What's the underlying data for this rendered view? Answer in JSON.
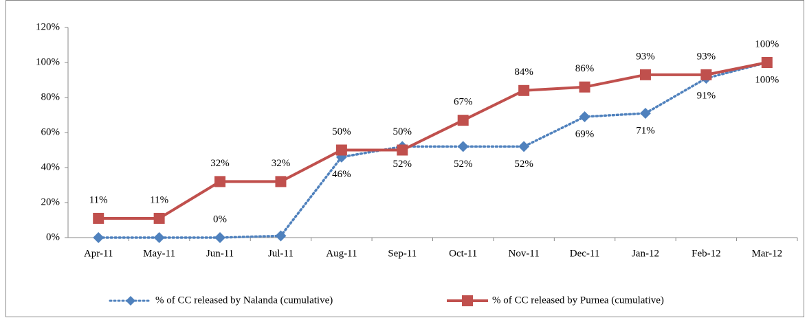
{
  "chart_data": {
    "type": "line",
    "categories": [
      "Apr-11",
      "May-11",
      "Jun-11",
      "Jul-11",
      "Aug-11",
      "Sep-11",
      "Oct-11",
      "Nov-11",
      "Dec-11",
      "Jan-12",
      "Feb-12",
      "Mar-12"
    ],
    "series": [
      {
        "name": "% of CC released by Nalanda (cumulative)",
        "color": "#4f81bd",
        "style": "dotted",
        "marker": "diamond",
        "values": [
          0,
          0,
          0,
          1,
          46,
          52,
          52,
          52,
          69,
          71,
          91,
          100
        ],
        "value_labels": [
          null,
          null,
          "0%",
          null,
          "46%",
          "52%",
          "52%",
          "52%",
          "69%",
          "71%",
          "91%",
          "100%"
        ]
      },
      {
        "name": "% of CC released by Purnea (cumulative)",
        "color": "#c0504d",
        "style": "solid",
        "marker": "square",
        "values": [
          11,
          11,
          32,
          32,
          50,
          50,
          67,
          84,
          86,
          93,
          93,
          100
        ],
        "value_labels": [
          "11%",
          "11%",
          "32%",
          "32%",
          "50%",
          "50%",
          "67%",
          "84%",
          "86%",
          "93%",
          "93%",
          "100%"
        ]
      }
    ],
    "ylim": [
      0,
      120
    ],
    "yticks": [
      {
        "value": 0,
        "label": "0%"
      },
      {
        "value": 20,
        "label": "20%"
      },
      {
        "value": 40,
        "label": "40%"
      },
      {
        "value": 60,
        "label": "60%"
      },
      {
        "value": 80,
        "label": "80%"
      },
      {
        "value": 100,
        "label": "100%"
      },
      {
        "value": 120,
        "label": "120%"
      }
    ],
    "grid": false,
    "legend": "bottom"
  }
}
